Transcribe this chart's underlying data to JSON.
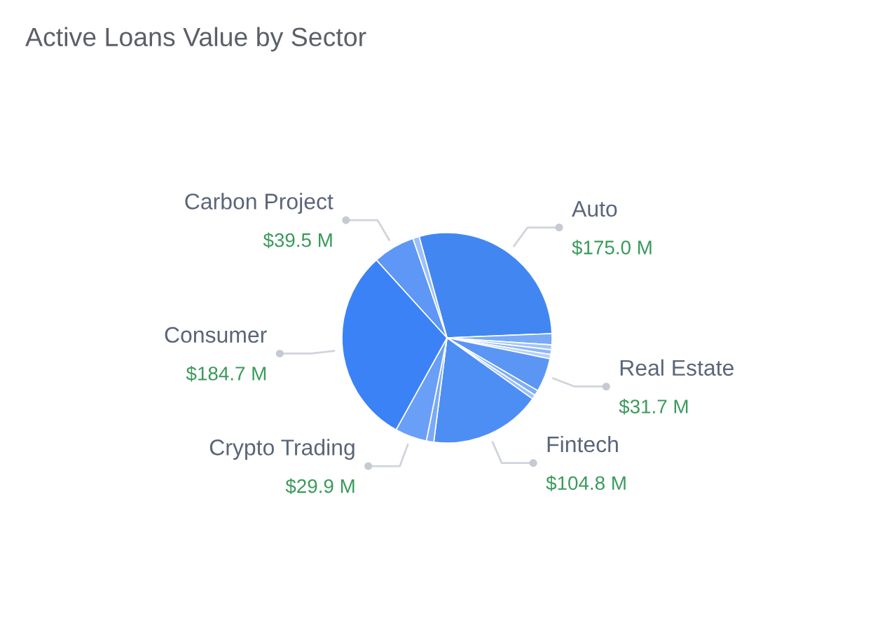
{
  "chart_data": {
    "type": "pie",
    "title": "Active Loans Value by Sector",
    "categories": [
      "Auto",
      null,
      null,
      null,
      null,
      "Real Estate",
      null,
      null,
      "Fintech",
      null,
      "Crypto Trading",
      "Consumer",
      "Carbon Project",
      null
    ],
    "values": [
      175.0,
      10.5,
      4.5,
      4.5,
      4,
      31.7,
      5,
      4,
      104.8,
      7,
      29.9,
      184.7,
      39.5,
      6
    ],
    "colors": [
      "#4287f1",
      "#7aaaf7",
      "#a3c4fa",
      "#8fb7f9",
      "#b5cffb",
      "#5b96f5",
      "#7eadf7",
      "#9cc0fa",
      "#4d8ef5",
      "#7aaaf7",
      "#6a9ff7",
      "#3b82f6",
      "#5e97f5",
      "#9cc0fa"
    ],
    "value_labels": [
      "$175.0 M",
      null,
      null,
      null,
      null,
      "$31.7 M",
      null,
      null,
      "$104.8 M",
      null,
      "$29.9 M",
      "$184.7 M",
      "$39.5 M",
      null
    ]
  }
}
